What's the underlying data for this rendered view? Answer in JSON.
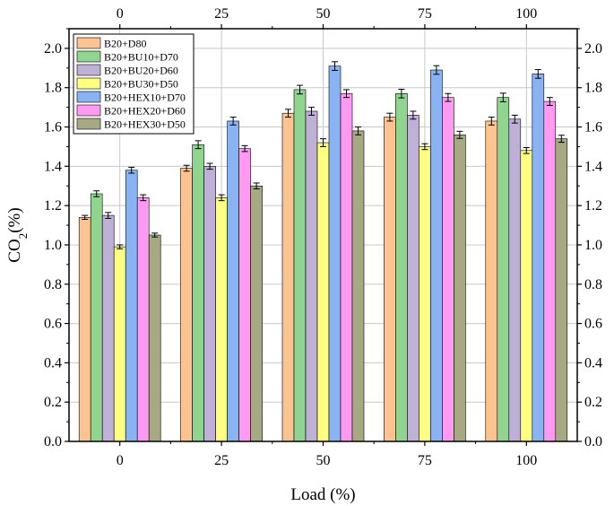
{
  "chart_data": {
    "type": "bar",
    "xlabel": "Load (%)",
    "ylabel_main": "CO",
    "ylabel_sub": "2",
    "ylabel_unit": "(%)",
    "categories": [
      "0",
      "25",
      "50",
      "75",
      "100"
    ],
    "ylim": [
      0.0,
      2.1
    ],
    "yticks": [
      "0.0",
      "0.2",
      "0.4",
      "0.6",
      "0.8",
      "1.0",
      "1.2",
      "1.4",
      "1.6",
      "1.8",
      "2.0"
    ],
    "grid": true,
    "legend_position": "top-left",
    "series": [
      {
        "name": "B20+D80",
        "color": "#FDC492",
        "values": [
          1.14,
          1.39,
          1.67,
          1.65,
          1.63
        ],
        "errors": [
          0.01,
          0.015,
          0.02,
          0.02,
          0.02
        ]
      },
      {
        "name": "B20+BU10+D70",
        "color": "#8FD48F",
        "values": [
          1.26,
          1.51,
          1.79,
          1.77,
          1.75
        ],
        "errors": [
          0.015,
          0.02,
          0.022,
          0.022,
          0.022
        ]
      },
      {
        "name": "B20+BU20+D60",
        "color": "#BFB0D8",
        "values": [
          1.15,
          1.4,
          1.68,
          1.66,
          1.64
        ],
        "errors": [
          0.015,
          0.015,
          0.02,
          0.02,
          0.02
        ]
      },
      {
        "name": "B20+BU30+D50",
        "color": "#FFFF80",
        "values": [
          0.99,
          1.24,
          1.52,
          1.5,
          1.48
        ],
        "errors": [
          0.01,
          0.015,
          0.02,
          0.015,
          0.015
        ]
      },
      {
        "name": "B20+HEX10+D70",
        "color": "#89B3F2",
        "values": [
          1.38,
          1.63,
          1.91,
          1.89,
          1.87
        ],
        "errors": [
          0.015,
          0.02,
          0.022,
          0.022,
          0.022
        ]
      },
      {
        "name": "B20+HEX20+D60",
        "color": "#FF99F2",
        "values": [
          1.24,
          1.49,
          1.77,
          1.75,
          1.73
        ],
        "errors": [
          0.015,
          0.015,
          0.02,
          0.02,
          0.02
        ]
      },
      {
        "name": "B20+HEX30+D50",
        "color": "#A7A982",
        "values": [
          1.05,
          1.3,
          1.58,
          1.56,
          1.54
        ],
        "errors": [
          0.01,
          0.015,
          0.02,
          0.018,
          0.018
        ]
      }
    ]
  }
}
